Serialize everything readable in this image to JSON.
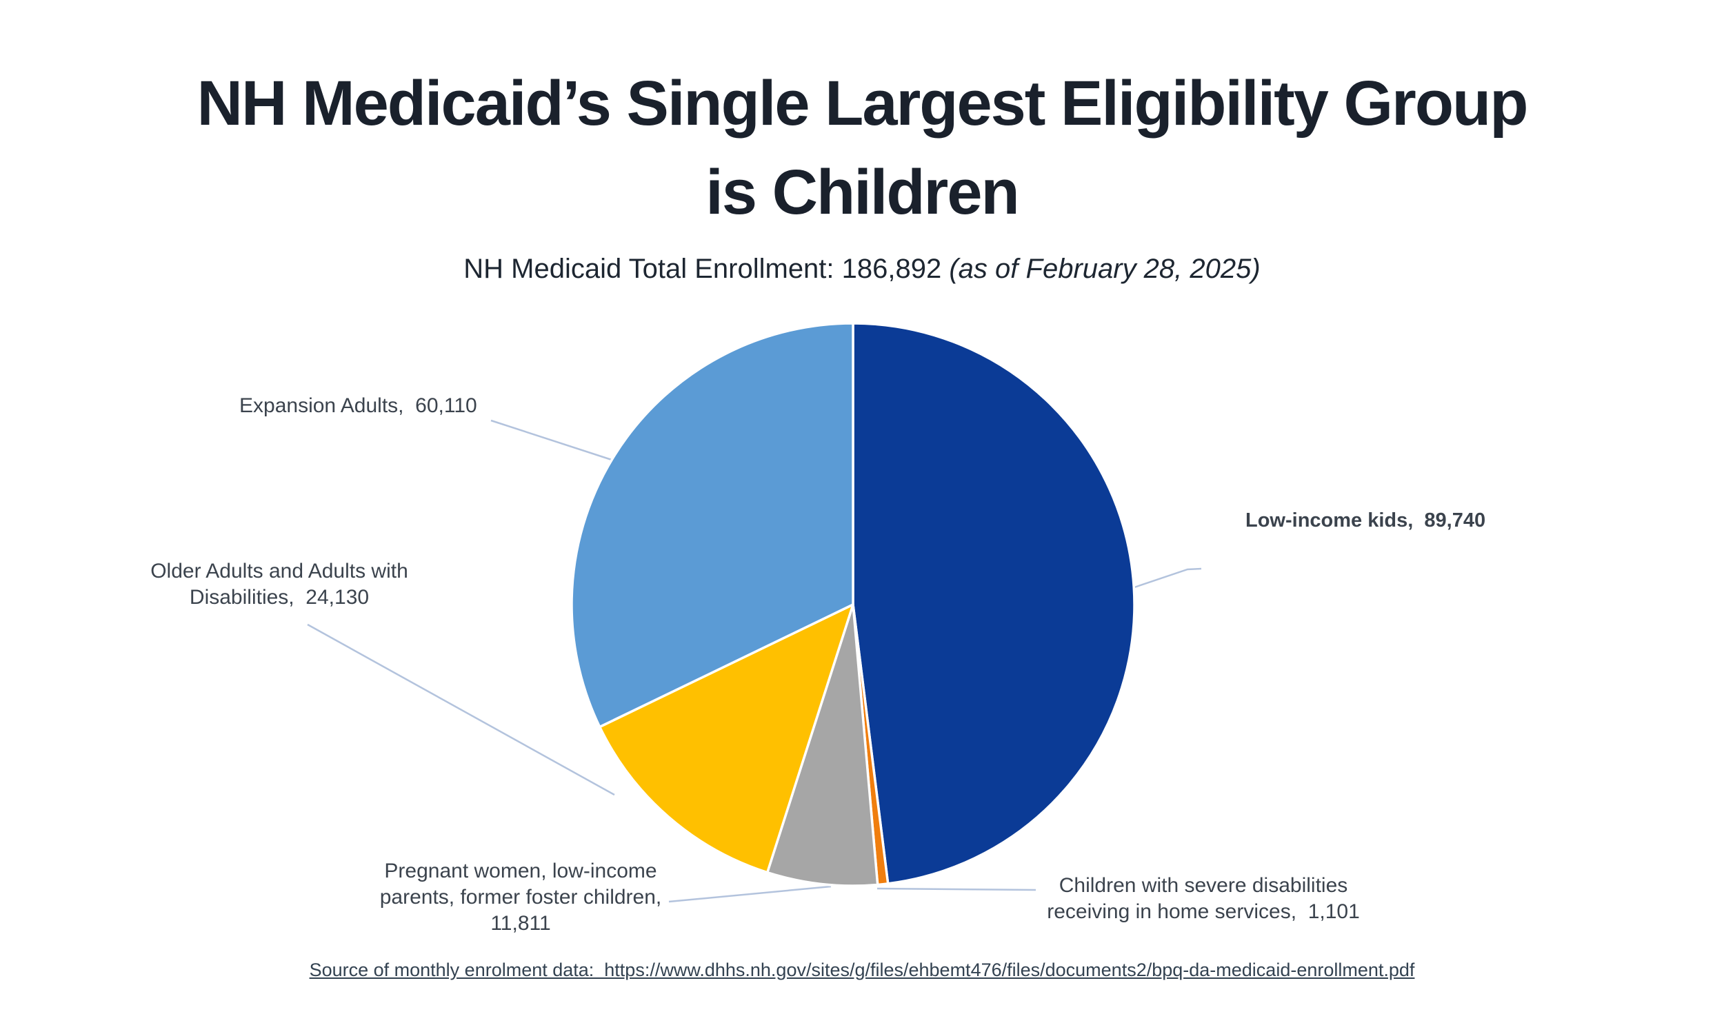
{
  "page": {
    "title_line1": "NH Medicaid’s Single Largest Eligibility Group",
    "title_line2": "is Children"
  },
  "subtitle": {
    "prefix": "NH Medicaid Total Enrollment: 186,892 ",
    "note": "(as of February 28, 2025)"
  },
  "source": {
    "text": "Source of monthly enrolment data:  https://www.dhhs.nh.gov/sites/g/files/ehbemt476/files/documents2/bpq-da-medicaid-enrollment.pdf"
  },
  "colors": {
    "leader_line": "#B3C3DD",
    "title_text": "#1A212C",
    "label_text": "#3B434D",
    "source_text": "#334251",
    "background": "#FFFFFF"
  },
  "chart_data": {
    "type": "pie",
    "title": "NH Medicaid’s Single Largest Eligibility Group is Children",
    "subtitle": "NH Medicaid Total Enrollment: 186,892 (as of February 28, 2025)",
    "total_enrollment": 186892,
    "as_of_date": "February 28, 2025",
    "direction": "clockwise-from-top",
    "legend_position": "none-callout-labels-with-leader-lines",
    "slices": [
      {
        "id": "low-income-kids",
        "label": "Low-income kids",
        "value": 89740,
        "color": "#0B3B96",
        "callout": "Low-income kids,  89,740"
      },
      {
        "id": "children-severe-disabilities",
        "label": "Children with severe disabilities receiving in home services",
        "value": 1101,
        "color": "#F07E0E",
        "callout": "Children with severe disabilities\nreceiving in home services,  1,101"
      },
      {
        "id": "pregnant-women-parents-foster",
        "label": "Pregnant women, low-income parents, former foster children",
        "value": 11811,
        "color": "#A6A6A6",
        "callout": "Pregnant women, low-income\nparents, former foster children,\n11,811"
      },
      {
        "id": "older-adults-disabilities",
        "label": "Older Adults and Adults with Disabilities",
        "value": 24130,
        "color": "#FFC000",
        "callout": "Older Adults and Adults with\nDisabilities,  24,130"
      },
      {
        "id": "expansion-adults",
        "label": "Expansion Adults",
        "value": 60110,
        "color": "#5B9BD5",
        "callout": "Expansion Adults,  60,110"
      }
    ]
  }
}
